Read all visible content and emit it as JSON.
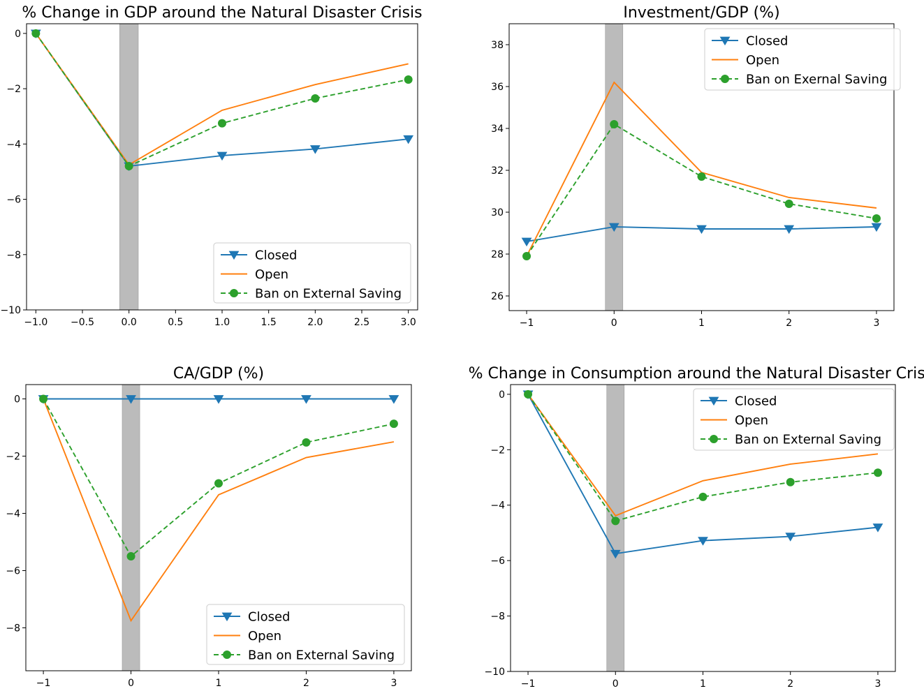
{
  "colors": {
    "closed": "#1f77b4",
    "open": "#ff7f0e",
    "ban": "#2ca02c",
    "shade": "#bbbbbb"
  },
  "chart_data": [
    {
      "type": "line",
      "title": "% Change in GDP around the Natural Disaster Crisis",
      "xlabel": "",
      "ylabel": "",
      "xlim": [
        -1.1,
        3.1
      ],
      "ylim": [
        -10,
        0.35
      ],
      "xticks": [
        -1.0,
        -0.5,
        0.0,
        0.5,
        1.0,
        1.5,
        2.0,
        2.5,
        3.0
      ],
      "xtick_labels": [
        "−1.0",
        "−0.5",
        "0.0",
        "0.5",
        "1.0",
        "1.5",
        "2.0",
        "2.5",
        "3.0"
      ],
      "yticks": [
        0,
        -2,
        -4,
        -6,
        -8,
        -10
      ],
      "ytick_labels": [
        "0",
        "−2",
        "−4",
        "−6",
        "−8",
        "−10"
      ],
      "shaded_region": [
        -0.1,
        0.1
      ],
      "legend_position": "lower-right",
      "x": [
        -1,
        0,
        1,
        2,
        3
      ],
      "series": [
        {
          "name": "Closed",
          "style": "closed",
          "values": [
            0,
            -4.8,
            -4.42,
            -4.18,
            -3.82
          ]
        },
        {
          "name": "Open",
          "style": "open",
          "values": [
            0,
            -4.75,
            -2.78,
            -1.85,
            -1.1
          ]
        },
        {
          "name": "Ban on External Saving",
          "style": "ban",
          "values": [
            0,
            -4.8,
            -3.25,
            -2.35,
            -1.67
          ]
        }
      ]
    },
    {
      "type": "line",
      "title": "Investment/GDP (%)",
      "xlabel": "",
      "ylabel": "",
      "xlim": [
        -1.2,
        3.2
      ],
      "ylim": [
        25.3,
        39.0
      ],
      "xticks": [
        -1,
        0,
        1,
        2,
        3
      ],
      "xtick_labels": [
        "−1",
        "0",
        "1",
        "2",
        "3"
      ],
      "yticks": [
        26,
        28,
        30,
        32,
        34,
        36,
        38
      ],
      "ytick_labels": [
        "26",
        "28",
        "30",
        "32",
        "34",
        "36",
        "38"
      ],
      "shaded_region": [
        -0.1,
        0.1
      ],
      "legend_position": "upper-right",
      "x": [
        -1,
        0,
        1,
        2,
        3
      ],
      "series": [
        {
          "name": "Closed",
          "style": "closed",
          "values": [
            28.6,
            29.3,
            29.2,
            29.2,
            29.3
          ]
        },
        {
          "name": "Open",
          "style": "open",
          "values": [
            27.9,
            36.2,
            31.9,
            30.7,
            30.2
          ]
        },
        {
          "name": "Ban on Exernal Saving",
          "style": "ban",
          "values": [
            27.9,
            34.2,
            31.7,
            30.4,
            29.7
          ]
        }
      ]
    },
    {
      "type": "line",
      "title": "CA/GDP (%)",
      "xlabel": "",
      "ylabel": "",
      "xlim": [
        -1.2,
        3.2
      ],
      "ylim": [
        -9.5,
        0.5
      ],
      "xticks": [
        -1,
        0,
        1,
        2,
        3
      ],
      "xtick_labels": [
        "−1",
        "0",
        "1",
        "2",
        "3"
      ],
      "yticks": [
        0,
        -2,
        -4,
        -6,
        -8
      ],
      "ytick_labels": [
        "0",
        "−2",
        "−4",
        "−6",
        "−8"
      ],
      "shaded_region": [
        -0.1,
        0.1
      ],
      "legend_position": "lower-right",
      "x": [
        -1,
        0,
        1,
        2,
        3
      ],
      "series": [
        {
          "name": "Closed",
          "style": "closed",
          "values": [
            0,
            0,
            0,
            0,
            0
          ]
        },
        {
          "name": "Open",
          "style": "open",
          "values": [
            0,
            -7.75,
            -3.35,
            -2.05,
            -1.5
          ]
        },
        {
          "name": "Ban on External Saving",
          "style": "ban",
          "values": [
            0,
            -5.5,
            -2.95,
            -1.52,
            -0.87
          ]
        }
      ]
    },
    {
      "type": "line",
      "title": "% Change in Consumption around the Natural Disaster Crisis",
      "xlabel": "",
      "ylabel": "",
      "xlim": [
        -1.2,
        3.2
      ],
      "ylim": [
        -10,
        0.35
      ],
      "xticks": [
        -1,
        0,
        1,
        2,
        3
      ],
      "xtick_labels": [
        "−1",
        "0",
        "1",
        "2",
        "3"
      ],
      "yticks": [
        0,
        -2,
        -4,
        -6,
        -8,
        -10
      ],
      "ytick_labels": [
        "0",
        "−2",
        "−4",
        "−6",
        "−8",
        "−10"
      ],
      "shaded_region": [
        -0.1,
        0.1
      ],
      "legend_position": "upper-right",
      "x": [
        -1,
        0,
        1,
        2,
        3
      ],
      "series": [
        {
          "name": "Closed",
          "style": "closed",
          "values": [
            0,
            -5.75,
            -5.28,
            -5.13,
            -4.8
          ]
        },
        {
          "name": "Open",
          "style": "open",
          "values": [
            0,
            -4.38,
            -3.12,
            -2.52,
            -2.15
          ]
        },
        {
          "name": "Ban on External Saving",
          "style": "ban",
          "values": [
            0,
            -4.57,
            -3.7,
            -3.17,
            -2.83
          ]
        }
      ]
    }
  ]
}
